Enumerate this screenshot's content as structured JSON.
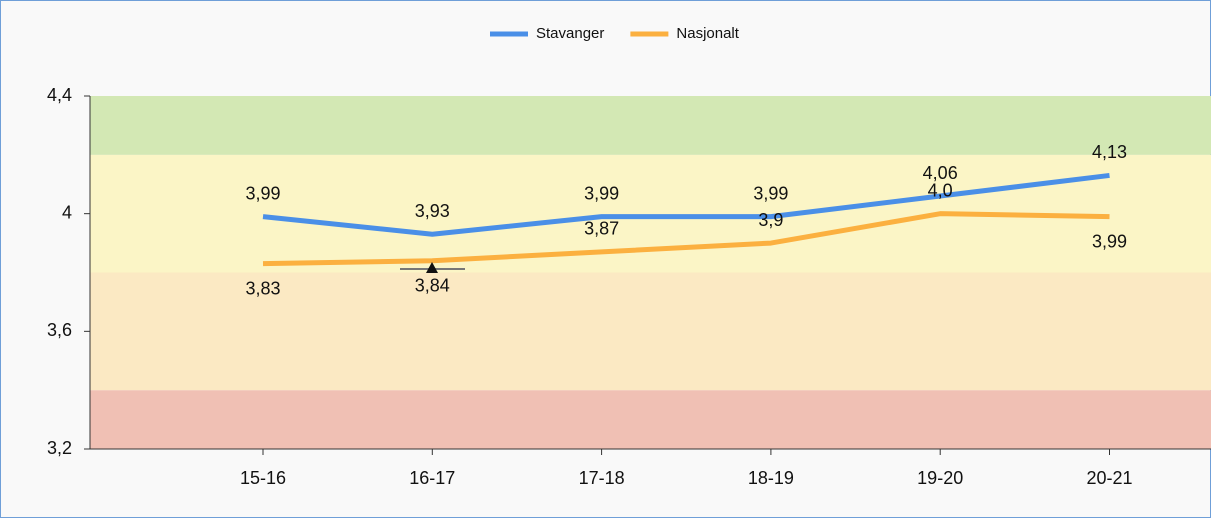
{
  "chart_data": {
    "type": "line",
    "categories": [
      "15-16",
      "16-17",
      "17-18",
      "18-19",
      "19-20",
      "20-21"
    ],
    "series": [
      {
        "name": "Stavanger",
        "color": "#4a8fe7",
        "values": [
          3.99,
          3.93,
          3.99,
          3.99,
          4.06,
          4.13
        ],
        "value_labels": [
          "3,99",
          "3,93",
          "3,99",
          "3,99",
          "4,06",
          "4,13"
        ]
      },
      {
        "name": "Nasjonalt",
        "color": "#fbb040",
        "values": [
          3.83,
          3.84,
          3.87,
          3.9,
          4.0,
          3.99
        ],
        "value_labels": [
          "3,83",
          "3,84",
          "3,87",
          "3,9",
          "4,0",
          "3,99"
        ]
      }
    ],
    "ylim": [
      3.2,
      4.4
    ],
    "yticks": [
      {
        "value": 3.2,
        "label": "3,2"
      },
      {
        "value": 3.6,
        "label": "3,6"
      },
      {
        "value": 4.0,
        "label": "4"
      },
      {
        "value": 4.4,
        "label": "4,4"
      }
    ],
    "bands": [
      {
        "from": 3.2,
        "to": 3.4,
        "color": "#f0c0b4"
      },
      {
        "from": 3.4,
        "to": 3.8,
        "color": "#fbe9c3"
      },
      {
        "from": 3.8,
        "to": 4.2,
        "color": "#fbf5c6"
      },
      {
        "from": 4.2,
        "to": 4.4,
        "color": "#d3e8b4"
      }
    ],
    "legend": "top"
  }
}
